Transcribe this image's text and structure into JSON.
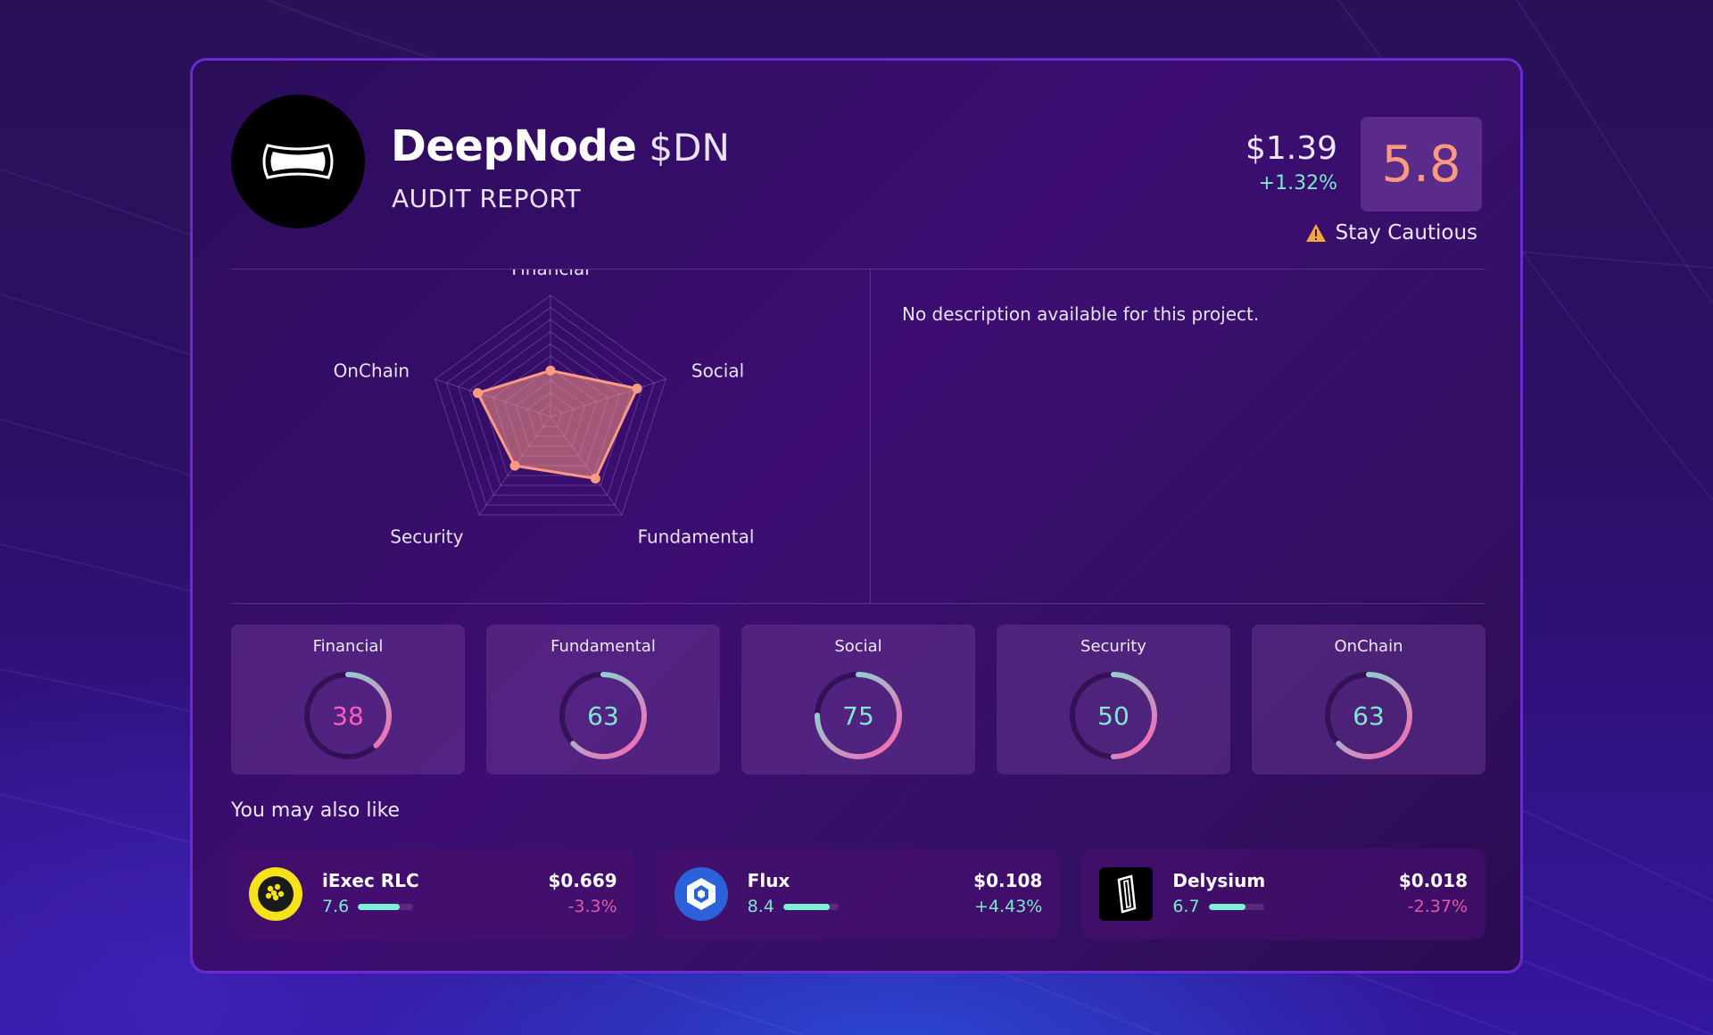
{
  "header": {
    "project_name": "DeepNode",
    "ticker": "$DN",
    "subtitle": "AUDIT REPORT",
    "price": "$1.39",
    "price_change": "+1.32%",
    "score": "5.8",
    "caution_text": "Stay Cautious"
  },
  "description": "No description available for this project.",
  "radar": {
    "axes": [
      "Financial",
      "Social",
      "Fundamental",
      "Security",
      "OnChain"
    ],
    "values": [
      38,
      75,
      63,
      50,
      63
    ],
    "max": 100
  },
  "tiles": [
    {
      "label": "Financial",
      "value": 38
    },
    {
      "label": "Fundamental",
      "value": 63
    },
    {
      "label": "Social",
      "value": 75
    },
    {
      "label": "Security",
      "value": 50
    },
    {
      "label": "OnChain",
      "value": 63
    }
  ],
  "recommendations": {
    "heading": "You may also like",
    "items": [
      {
        "name": "iExec RLC",
        "score": "7.6",
        "score_fraction": 0.76,
        "price": "$0.669",
        "change": "-3.3%",
        "change_color": "#e25aa8",
        "icon": "iexec-logo-icon"
      },
      {
        "name": "Flux",
        "score": "8.4",
        "score_fraction": 0.84,
        "price": "$0.108",
        "change": "+4.43%",
        "change_color": "#7ee8cd",
        "icon": "flux-logo-icon"
      },
      {
        "name": "Delysium",
        "score": "6.7",
        "score_fraction": 0.67,
        "price": "$0.018",
        "change": "-2.37%",
        "change_color": "#e25aa8",
        "icon": "delysium-logo-icon"
      }
    ]
  },
  "colors": {
    "accent_score": "#fb9a7e",
    "positive": "#7ee8cd",
    "negative": "#e25aa8",
    "ring_gradient_start": "#ff5fb0",
    "ring_gradient_end": "#6ff0d8"
  }
}
